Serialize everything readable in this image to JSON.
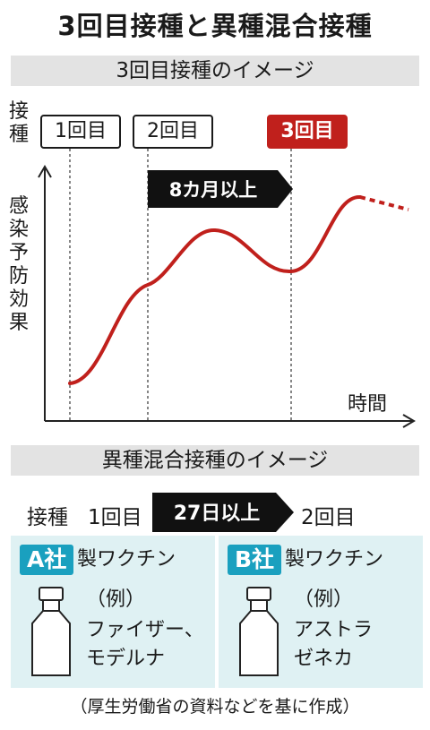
{
  "title": "3回目接種と異種混合接種",
  "section1": {
    "heading": "3回目接種のイメージ",
    "axis_y_top": "接種",
    "axis_y_main": "感染予防効果",
    "axis_x": "時間",
    "dose1": "1回目",
    "dose2": "2回目",
    "dose3": "3回目",
    "interval": "8カ月以上",
    "accent_color": "#c0201c"
  },
  "section2": {
    "heading": "異種混合接種のイメージ",
    "row_label": "接種",
    "dose1": "1回目",
    "interval": "27日以上",
    "dose2": "2回目",
    "panel_a": {
      "badge": "A社",
      "rest": "製ワクチン",
      "example_label": "（例）",
      "example_line1": "ファイザー、",
      "example_line2": "モデルナ"
    },
    "panel_b": {
      "badge": "B社",
      "rest": "製ワクチン",
      "example_label": "（例）",
      "example_line1": "アストラ",
      "example_line2": "ゼネカ"
    },
    "badge_color": "#1aa0bf",
    "panel_color": "#dff1f3"
  },
  "note": "（厚生労働省の資料などを基に作成）"
}
